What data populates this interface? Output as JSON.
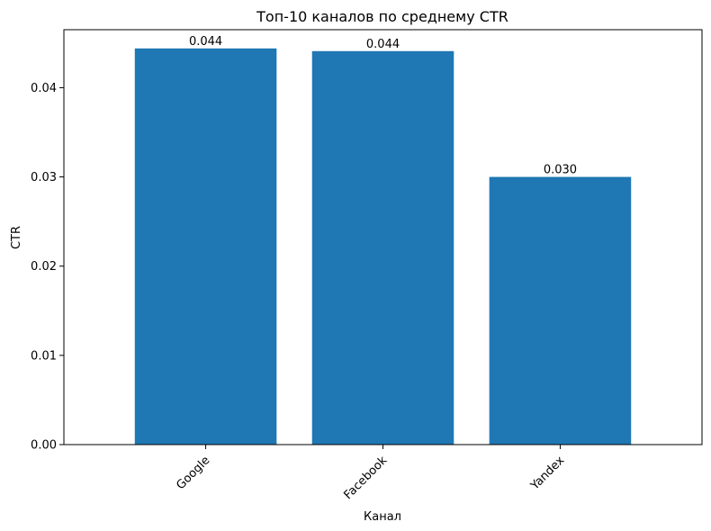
{
  "chart_data": {
    "type": "bar",
    "title": "Топ-10 каналов по среднему CTR",
    "xlabel": "Канал",
    "ylabel": "CTR",
    "categories": [
      "Google",
      "Facebook",
      "Yandex"
    ],
    "values": [
      0.0444,
      0.0441,
      0.03
    ],
    "data_labels": [
      "0.044",
      "0.044",
      "0.030"
    ],
    "ylim": [
      0,
      0.0465
    ],
    "yticks": [
      0.0,
      0.01,
      0.02,
      0.03,
      0.04
    ],
    "ytick_labels": [
      "0.00",
      "0.01",
      "0.02",
      "0.03",
      "0.04"
    ],
    "bar_color": "#1f77b4",
    "grid": false,
    "legend": "none"
  }
}
